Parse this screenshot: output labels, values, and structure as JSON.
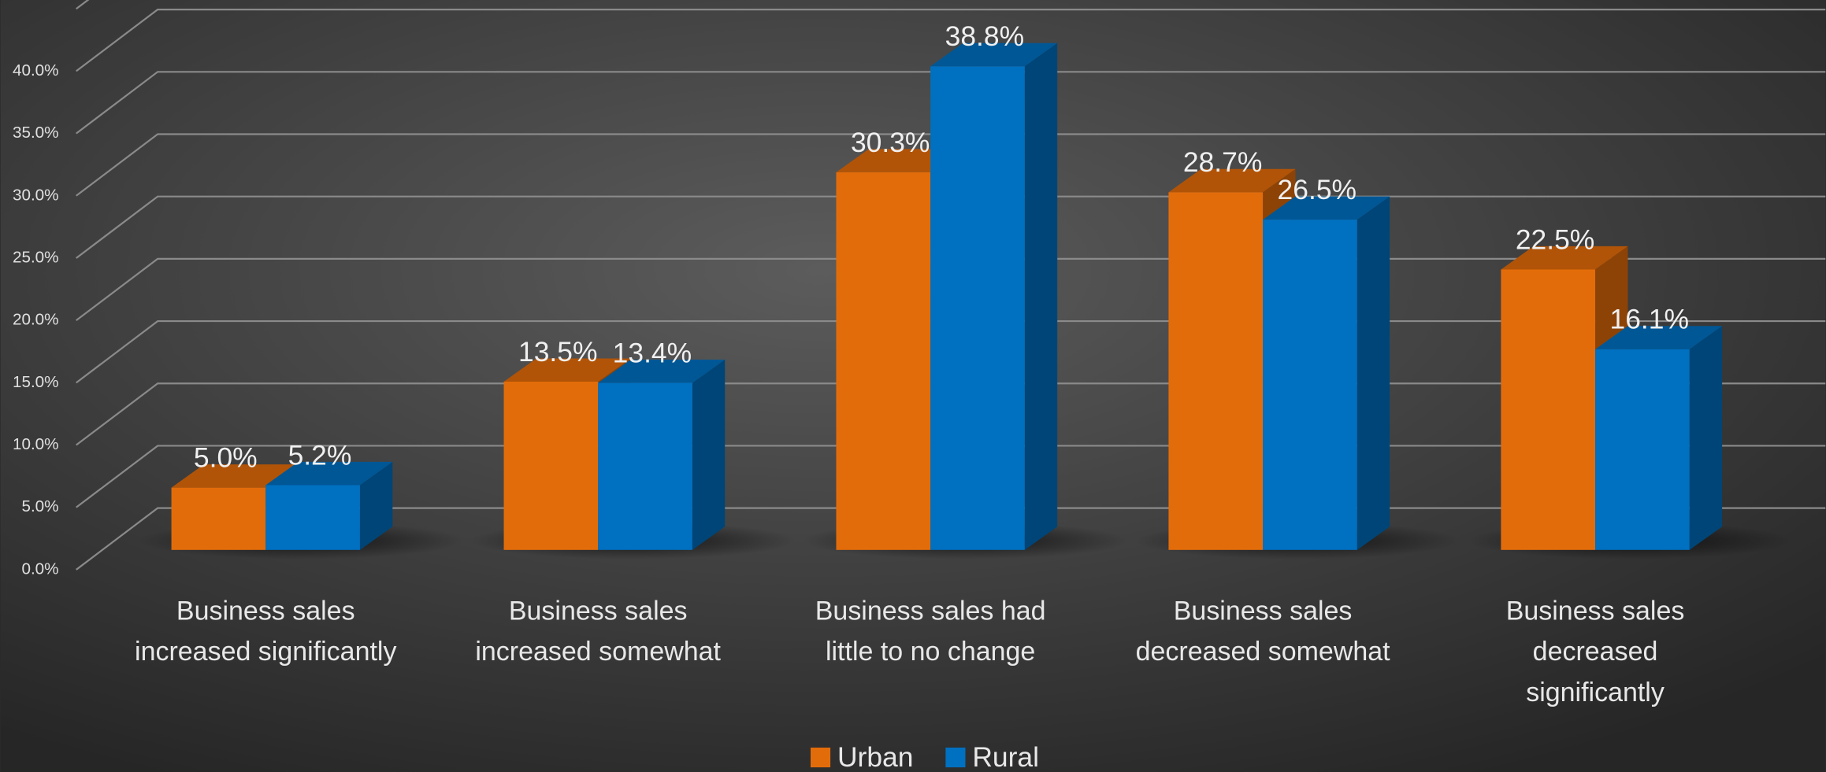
{
  "chart_data": {
    "type": "bar3d",
    "categories": [
      "Business sales\nincreased significantly",
      "Business sales\nincreased somewhat",
      "Business sales had\nlittle to no change",
      "Business sales\ndecreased somewhat",
      "Business sales\ndecreased\nsignificantly"
    ],
    "series": [
      {
        "name": "Urban",
        "color": "#e36c0a",
        "values": [
          5.0,
          13.5,
          30.3,
          28.7,
          22.5
        ],
        "value_labels": [
          "5.0%",
          "13.5%",
          "30.3%",
          "28.7%",
          "22.5%"
        ]
      },
      {
        "name": "Rural",
        "color": "#0070c0",
        "values": [
          5.2,
          13.4,
          38.8,
          26.5,
          16.1
        ],
        "value_labels": [
          "5.2%",
          "13.4%",
          "38.8%",
          "26.5%",
          "16.1%"
        ]
      }
    ],
    "ylim": [
      0,
      45
    ],
    "yticks": [
      {
        "value": 0,
        "label": "0.0%"
      },
      {
        "value": 5,
        "label": "5.0%"
      },
      {
        "value": 10,
        "label": "10.0%"
      },
      {
        "value": 15,
        "label": "15.0%"
      },
      {
        "value": 20,
        "label": "20.0%"
      },
      {
        "value": 25,
        "label": "25.0%"
      },
      {
        "value": 30,
        "label": "30.0%"
      },
      {
        "value": 35,
        "label": "35.0%"
      },
      {
        "value": 40,
        "label": "40.0%"
      }
    ],
    "grid": true,
    "legend": "bottom"
  }
}
